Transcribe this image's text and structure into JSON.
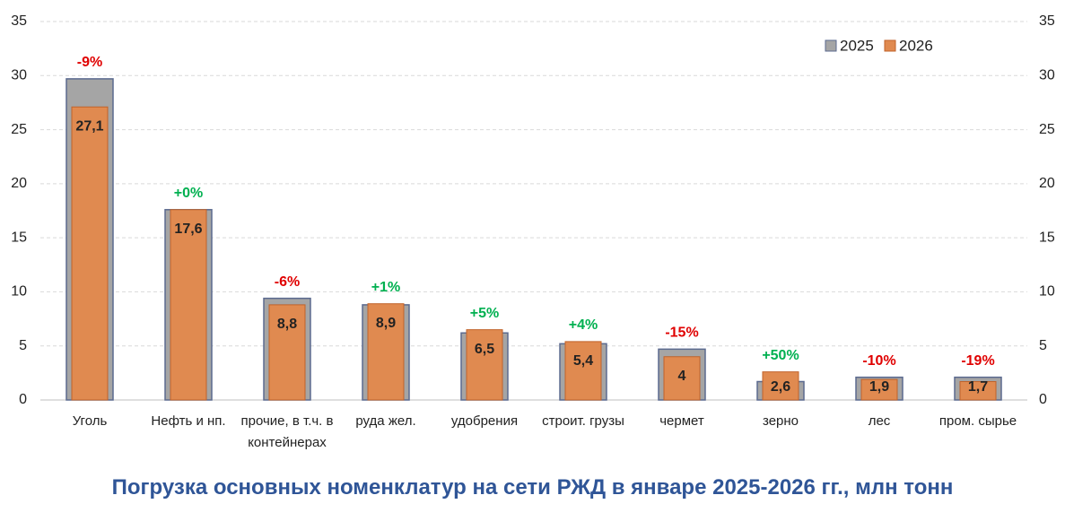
{
  "chart_data": {
    "type": "bar",
    "title": "Погрузка основных номенклатур на сети РЖД в январе 2025-2026 гг., млн тонн",
    "categories": [
      "Уголь",
      "Нефть и нп.",
      "прочие, в т.ч. в контейнерах",
      "руда жел.",
      "удобрения",
      "строит. грузы",
      "чермет",
      "зерно",
      "лес",
      "пром. сырье"
    ],
    "series": [
      {
        "name": "2025",
        "color": "#a5a5a5",
        "values": [
          29.7,
          17.6,
          9.4,
          8.8,
          6.2,
          5.2,
          4.7,
          1.7,
          2.1,
          2.1
        ]
      },
      {
        "name": "2026",
        "color": "#e08a50",
        "values": [
          27.1,
          17.6,
          8.8,
          8.9,
          6.5,
          5.4,
          4,
          2.6,
          1.9,
          1.7
        ],
        "value_labels": [
          "27,1",
          "17,6",
          "8,8",
          "8,9",
          "6,5",
          "5,4",
          "4",
          "2,6",
          "1,9",
          "1,7"
        ]
      }
    ],
    "annotations": [
      {
        "text": "-9%",
        "color": "#e00000"
      },
      {
        "text": "+0%",
        "color": "#00b050"
      },
      {
        "text": "-6%",
        "color": "#e00000"
      },
      {
        "text": "+1%",
        "color": "#00b050"
      },
      {
        "text": "+5%",
        "color": "#00b050"
      },
      {
        "text": "+4%",
        "color": "#00b050"
      },
      {
        "text": "-15%",
        "color": "#e00000"
      },
      {
        "text": "+50%",
        "color": "#00b050"
      },
      {
        "text": "-10%",
        "color": "#e00000"
      },
      {
        "text": "-19%",
        "color": "#e00000"
      }
    ],
    "ylim": [
      0,
      35
    ],
    "yticks": [
      0,
      5,
      10,
      15,
      20,
      25,
      30,
      35
    ],
    "y2lim": [
      0,
      35
    ],
    "y2ticks": [
      0,
      5,
      10,
      15,
      20,
      25,
      30,
      35
    ],
    "grid": true,
    "legend": "top-right"
  }
}
